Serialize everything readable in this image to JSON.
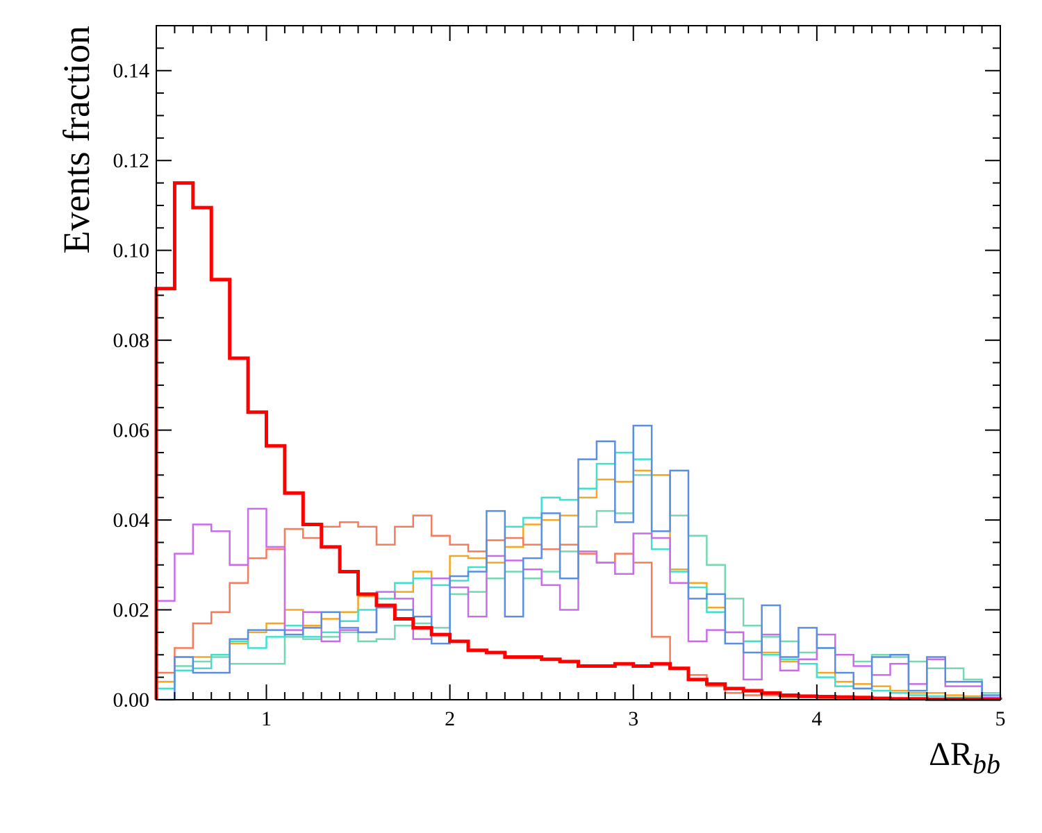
{
  "chart_data": {
    "type": "line",
    "style": "step-histogram",
    "xlabel": "ΔR",
    "xlabel_subscript": "bb",
    "ylabel": "Events fraction",
    "xlim": [
      0.4,
      5.0
    ],
    "ylim": [
      0,
      0.15
    ],
    "x_ticks": [
      1,
      2,
      3,
      4,
      5
    ],
    "x_tick_labels": [
      "1",
      "2",
      "3",
      "4",
      "5"
    ],
    "y_ticks": [
      0,
      0.02,
      0.04,
      0.06,
      0.08,
      0.1,
      0.12,
      0.14
    ],
    "y_tick_labels": [
      "0.00",
      "0.02",
      "0.04",
      "0.06",
      "0.08",
      "0.10",
      "0.12",
      "0.14"
    ],
    "grid": false,
    "legend": "none",
    "bin_edges": [
      0.4,
      0.5,
      0.6,
      0.7,
      0.8,
      0.9,
      1.0,
      1.1,
      1.2,
      1.3,
      1.4,
      1.5,
      1.6,
      1.7,
      1.8,
      1.9,
      2.0,
      2.1,
      2.2,
      2.3,
      2.4,
      2.5,
      2.6,
      2.7,
      2.8,
      2.9,
      3.0,
      3.1,
      3.2,
      3.3,
      3.4,
      3.5,
      3.6,
      3.7,
      3.8,
      3.9,
      4.0,
      4.1,
      4.2,
      4.3,
      4.4,
      4.5,
      4.6,
      4.7,
      4.8,
      4.9,
      5.0
    ],
    "series": [
      {
        "color": "#76d7b0",
        "width": 2.5,
        "values": [
          0.004,
          0.0075,
          0.0085,
          0.0095,
          0.008,
          0.008,
          0.008,
          0.014,
          0.0135,
          0.014,
          0.015,
          0.013,
          0.0135,
          0.0165,
          0.017,
          0.016,
          0.0235,
          0.024,
          0.027,
          0.0285,
          0.027,
          0.0285,
          0.033,
          0.0385,
          0.042,
          0.0415,
          0.05,
          0.05,
          0.041,
          0.0365,
          0.03,
          0.0225,
          0.0165,
          0.014,
          0.013,
          0.0105,
          0.0115,
          0.01,
          0.0085,
          0.01,
          0.0095,
          0.0085,
          0.007,
          0.007,
          0.0045,
          0.0015
        ]
      },
      {
        "color": "#f5a623",
        "width": 2.5,
        "values": [
          0.004,
          0.0095,
          0.0095,
          0.01,
          0.0125,
          0.015,
          0.017,
          0.02,
          0.0165,
          0.018,
          0.0195,
          0.023,
          0.0225,
          0.024,
          0.0285,
          0.027,
          0.032,
          0.0315,
          0.0305,
          0.034,
          0.039,
          0.04,
          0.041,
          0.045,
          0.049,
          0.0485,
          0.051,
          0.05,
          0.029,
          0.026,
          0.0205,
          0.015,
          0.013,
          0.0105,
          0.0085,
          0.008,
          0.006,
          0.004,
          0.0035,
          0.003,
          0.002,
          0.0015,
          0.0015,
          0.001,
          0.0008,
          0.0005
        ]
      },
      {
        "color": "#40e0d0",
        "width": 2.5,
        "values": [
          0.0025,
          0.0065,
          0.007,
          0.01,
          0.013,
          0.0115,
          0.014,
          0.0165,
          0.014,
          0.015,
          0.0175,
          0.02,
          0.0225,
          0.026,
          0.027,
          0.0255,
          0.0265,
          0.0295,
          0.0355,
          0.0385,
          0.0405,
          0.045,
          0.0445,
          0.047,
          0.0525,
          0.055,
          0.0535,
          0.0335,
          0.0285,
          0.025,
          0.0195,
          0.015,
          0.013,
          0.01,
          0.009,
          0.008,
          0.005,
          0.003,
          0.0025,
          0.002,
          0.0015,
          0.001,
          0.0008,
          0.0005,
          0.0005,
          0.0003
        ]
      },
      {
        "color": "#f47c5c",
        "width": 2.5,
        "values": [
          0.006,
          0.0115,
          0.017,
          0.0195,
          0.026,
          0.0315,
          0.0335,
          0.038,
          0.036,
          0.0385,
          0.0395,
          0.0385,
          0.0345,
          0.0385,
          0.041,
          0.0365,
          0.0345,
          0.033,
          0.0355,
          0.036,
          0.0345,
          0.0335,
          0.0345,
          0.0325,
          0.0305,
          0.0325,
          0.0305,
          0.014,
          0.007,
          0.0055,
          0.003,
          0.0015,
          0.001,
          0.001,
          0.0005,
          0.0005,
          0.0003,
          0.0003,
          0.0002,
          0.0002,
          0.0001,
          0.0001,
          0.0001,
          0.0001,
          0.0001,
          0.0001
        ]
      },
      {
        "color": "#c86de8",
        "width": 2.5,
        "values": [
          0.022,
          0.0325,
          0.039,
          0.0375,
          0.03,
          0.0425,
          0.034,
          0.0155,
          0.0195,
          0.013,
          0.0155,
          0.015,
          0.024,
          0.0225,
          0.0135,
          0.027,
          0.025,
          0.0185,
          0.032,
          0.031,
          0.029,
          0.0255,
          0.02,
          0.033,
          0.0305,
          0.028,
          0.037,
          0.036,
          0.026,
          0.013,
          0.0155,
          0.015,
          0.0045,
          0.0145,
          0.0065,
          0.009,
          0.0145,
          0.01,
          0.0075,
          0.0055,
          0.008,
          0.0035,
          0.009,
          0.003,
          0.003,
          0.0005
        ]
      },
      {
        "color": "#5b8ee0",
        "width": 2.5,
        "values": [
          0.0,
          0.0095,
          0.006,
          0.006,
          0.0135,
          0.0155,
          0.0155,
          0.0145,
          0.016,
          0.0195,
          0.016,
          0.015,
          0.0205,
          0.02,
          0.0185,
          0.0125,
          0.0275,
          0.0285,
          0.042,
          0.0185,
          0.0315,
          0.0415,
          0.027,
          0.0535,
          0.0575,
          0.0395,
          0.061,
          0.0375,
          0.051,
          0.0225,
          0.0235,
          0.0125,
          0.0105,
          0.021,
          0.0095,
          0.016,
          0.0115,
          0.006,
          0.0025,
          0.0095,
          0.01,
          0.002,
          0.0095,
          0.004,
          0.004,
          0.001
        ]
      },
      {
        "color": "#ff0000",
        "width": 5,
        "values": [
          0.0915,
          0.115,
          0.1095,
          0.0935,
          0.076,
          0.064,
          0.0565,
          0.046,
          0.039,
          0.034,
          0.0285,
          0.0235,
          0.021,
          0.018,
          0.016,
          0.0145,
          0.013,
          0.011,
          0.0105,
          0.0095,
          0.0095,
          0.009,
          0.0085,
          0.0075,
          0.0075,
          0.008,
          0.0075,
          0.008,
          0.007,
          0.0045,
          0.0035,
          0.0025,
          0.002,
          0.0015,
          0.001,
          0.0008,
          0.0007,
          0.0006,
          0.0005,
          0.0003,
          0.0002,
          0.0002,
          0.0001,
          0.0001,
          0.0001,
          0.0001
        ]
      }
    ]
  }
}
